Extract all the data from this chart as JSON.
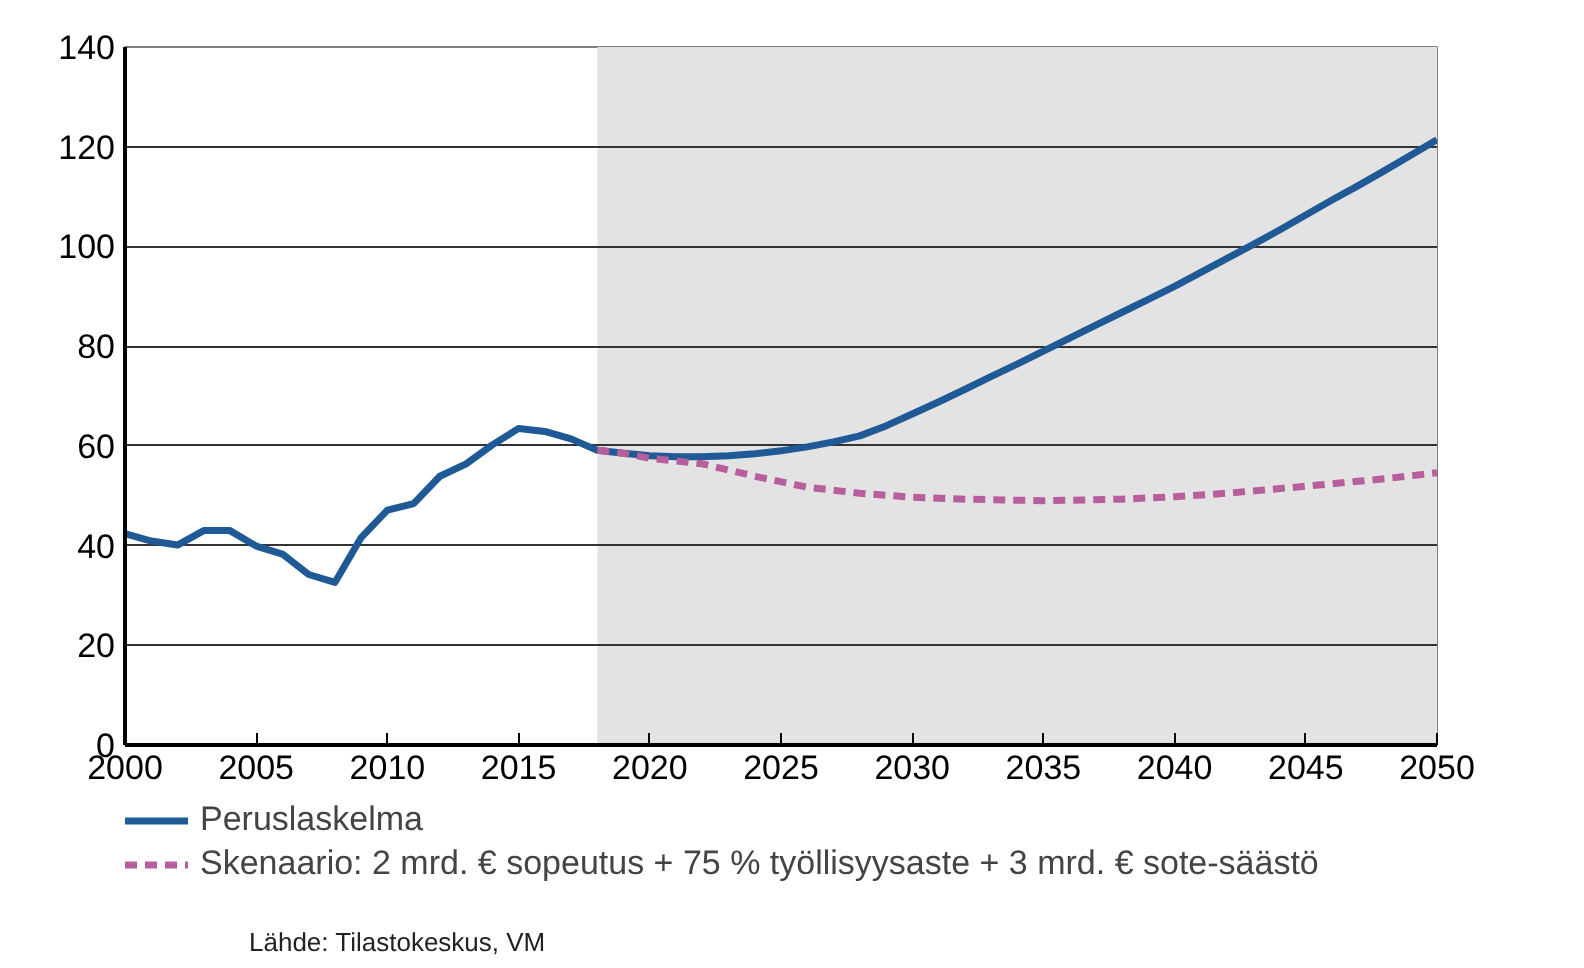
{
  "chart_data": {
    "type": "line",
    "xlim": [
      2000,
      2050
    ],
    "xticks": [
      2000,
      2005,
      2010,
      2015,
      2020,
      2025,
      2030,
      2035,
      2040,
      2045,
      2050
    ],
    "ylim": [
      0,
      140
    ],
    "yticks": [
      0,
      20,
      40,
      60,
      80,
      100,
      120,
      140
    ],
    "grid": "y",
    "legend": "bottom",
    "bands": [
      {
        "axis": "x",
        "from": 2018,
        "to": 2050,
        "color": "#e3e3e3"
      }
    ],
    "series": [
      {
        "name": "Peruslaskelma",
        "color": "#1f5a96",
        "line_style": "solid",
        "x": [
          2000,
          2001,
          2002,
          2003,
          2004,
          2005,
          2006,
          2007,
          2008,
          2009,
          2010,
          2011,
          2012,
          2013,
          2014,
          2015,
          2016,
          2017,
          2018,
          2019,
          2020,
          2021,
          2022,
          2023,
          2024,
          2025,
          2026,
          2027,
          2028,
          2029,
          2030,
          2031,
          2032,
          2033,
          2034,
          2035,
          2036,
          2037,
          2038,
          2039,
          2040,
          2041,
          2042,
          2043,
          2044,
          2045,
          2046,
          2047,
          2048,
          2049,
          2050
        ],
        "values": [
          42.4,
          40.9,
          40.1,
          43.0,
          43.0,
          39.9,
          38.3,
          34.2,
          32.6,
          41.6,
          47.1,
          48.4,
          53.9,
          56.4,
          60.2,
          63.5,
          62.9,
          61.4,
          59.1,
          58.5,
          58.0,
          57.8,
          57.8,
          58.0,
          58.4,
          59.0,
          59.8,
          60.8,
          62.0,
          64.0,
          66.4,
          68.8,
          71.3,
          73.9,
          76.4,
          79.0,
          81.6,
          84.2,
          86.8,
          89.4,
          92.0,
          94.8,
          97.6,
          100.4,
          103.3,
          106.3,
          109.3,
          112.2,
          115.2,
          118.3,
          121.4
        ]
      },
      {
        "name": "Skenaario: 2 mrd. € sopeutus + 75 % työllisyysaste + 3 mrd. € sote-säästö",
        "color": "#b65f9c",
        "line_style": "dashed",
        "x": [
          2018,
          2019,
          2020,
          2022,
          2024,
          2026,
          2028,
          2030,
          2032,
          2035,
          2038,
          2040,
          2042,
          2045,
          2048,
          2050
        ],
        "values": [
          59.1,
          58.5,
          57.5,
          56.4,
          53.9,
          51.7,
          50.5,
          49.7,
          49.3,
          49.0,
          49.3,
          49.8,
          50.5,
          51.9,
          53.4,
          54.6
        ]
      }
    ],
    "annotations": [
      "Lähde: Tilastokeskus, VM"
    ]
  }
}
